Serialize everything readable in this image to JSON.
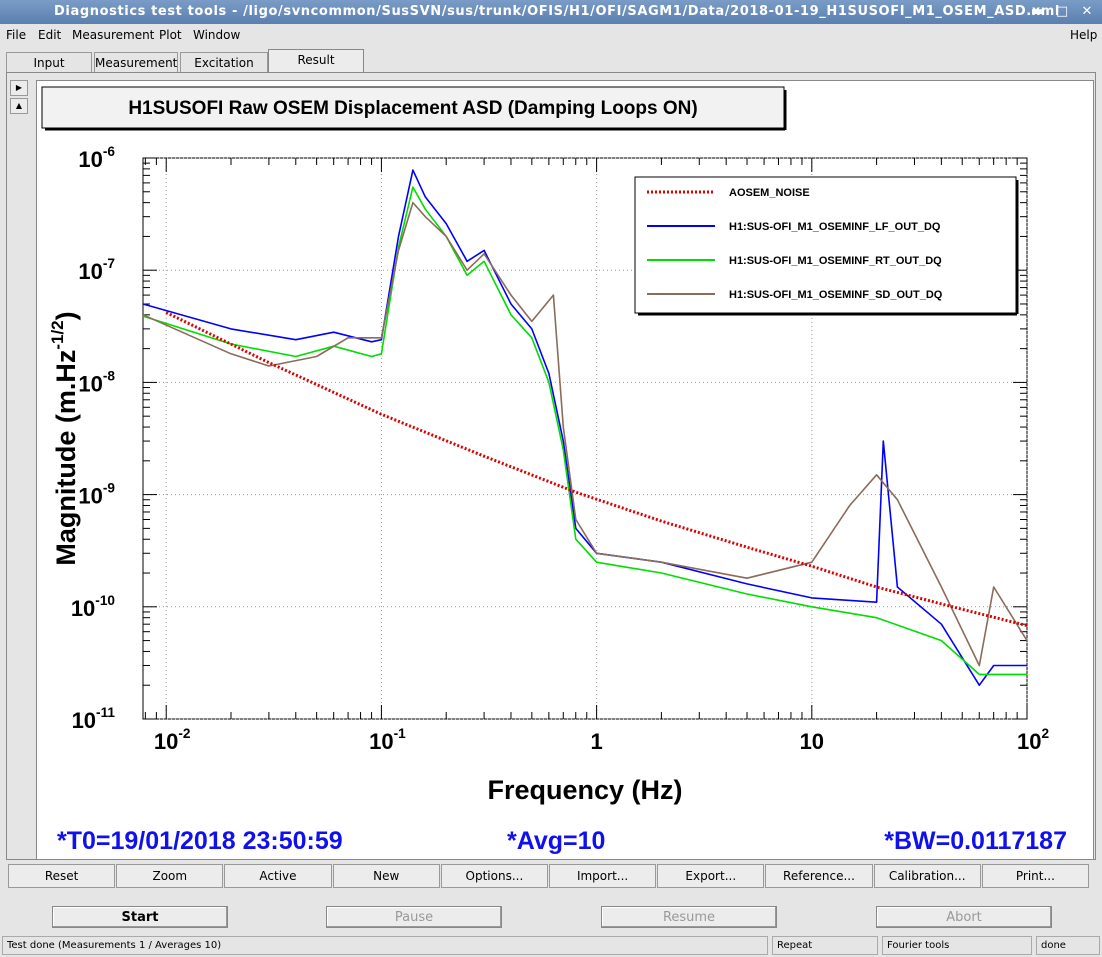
{
  "window": {
    "title": "Diagnostics test tools - /ligo/svncommon/SusSVN/sus/trunk/OFIS/H1/OFI/SAGM1/Data/2018-01-19_H1SUSOFI_M1_OSEM_ASD.xml"
  },
  "menu": {
    "file": "File",
    "edit": "Edit",
    "measurement": "Measurement",
    "plot": "Plot",
    "window": "Window",
    "help": "Help"
  },
  "tabs": [
    "Input",
    "Measurement",
    "Excitation",
    "Result"
  ],
  "chart_data": {
    "type": "line",
    "title": "H1SUSOFI Raw OSEM Displacement ASD (Damping Loops ON)",
    "xlabel": "Frequency (Hz)",
    "ylabel_main": "Magnitude (m.Hz",
    "ylabel_exp": "-1/2",
    "ylabel_close": ")",
    "x_scale": "log",
    "y_scale": "log",
    "xlim": [
      0.0078,
      100
    ],
    "ylim": [
      1e-11,
      1e-06
    ],
    "x_ticks": [
      {
        "base": "10",
        "exp": "-2",
        "value": 0.01
      },
      {
        "base": "10",
        "exp": "-1",
        "value": 0.1
      },
      {
        "base": "1",
        "exp": "",
        "value": 1
      },
      {
        "base": "10",
        "exp": "",
        "value": 10
      },
      {
        "base": "10",
        "exp": "2",
        "value": 100
      }
    ],
    "y_ticks": [
      {
        "base": "10",
        "exp": "-6",
        "value": 1e-06
      },
      {
        "base": "10",
        "exp": "-7",
        "value": 1e-07
      },
      {
        "base": "10",
        "exp": "-8",
        "value": 1e-08
      },
      {
        "base": "10",
        "exp": "-9",
        "value": 1e-09
      },
      {
        "base": "10",
        "exp": "-10",
        "value": 1e-10
      },
      {
        "base": "10",
        "exp": "-11",
        "value": 1e-11
      }
    ],
    "grid": true,
    "legend_position": "top-right",
    "series": [
      {
        "name": "AOSEM_NOISE",
        "color": "#dd0000",
        "style": "dotted",
        "points": [
          [
            0.01,
            4.2e-08
          ],
          [
            0.03,
            1.5e-08
          ],
          [
            0.1,
            5.2e-09
          ],
          [
            0.3,
            2.2e-09
          ],
          [
            0.8,
            1.05e-09
          ],
          [
            2,
            5.8e-10
          ],
          [
            5,
            3.4e-10
          ],
          [
            10,
            2.3e-10
          ],
          [
            20,
            1.5e-10
          ],
          [
            50,
            9.5e-11
          ],
          [
            100,
            6.8e-11
          ]
        ]
      },
      {
        "name": "H1:SUS-OFI_M1_OSEMINF_LF_OUT_DQ",
        "color": "#0000ff",
        "style": "solid",
        "points": [
          [
            0.0078,
            5e-08
          ],
          [
            0.02,
            3e-08
          ],
          [
            0.04,
            2.4e-08
          ],
          [
            0.06,
            2.8e-08
          ],
          [
            0.09,
            2.3e-08
          ],
          [
            0.1,
            2.4e-08
          ],
          [
            0.12,
            2e-07
          ],
          [
            0.14,
            7.8e-07
          ],
          [
            0.16,
            4.5e-07
          ],
          [
            0.2,
            2.6e-07
          ],
          [
            0.25,
            1.2e-07
          ],
          [
            0.3,
            1.5e-07
          ],
          [
            0.4,
            5e-08
          ],
          [
            0.5,
            3e-08
          ],
          [
            0.6,
            1.2e-08
          ],
          [
            0.7,
            3e-09
          ],
          [
            0.8,
            5e-10
          ],
          [
            1,
            3e-10
          ],
          [
            2,
            2.5e-10
          ],
          [
            5,
            1.6e-10
          ],
          [
            10,
            1.2e-10
          ],
          [
            20,
            1.1e-10
          ],
          [
            21.5,
            3e-09
          ],
          [
            25,
            1.5e-10
          ],
          [
            40,
            7e-11
          ],
          [
            60,
            2e-11
          ],
          [
            70,
            3e-11
          ],
          [
            100,
            3e-11
          ]
        ]
      },
      {
        "name": "H1:SUS-OFI_M1_OSEMINF_RT_OUT_DQ",
        "color": "#00dd00",
        "style": "solid",
        "points": [
          [
            0.0078,
            3.9e-08
          ],
          [
            0.02,
            2.2e-08
          ],
          [
            0.04,
            1.7e-08
          ],
          [
            0.06,
            2.1e-08
          ],
          [
            0.09,
            1.7e-08
          ],
          [
            0.1,
            1.8e-08
          ],
          [
            0.12,
            1.6e-07
          ],
          [
            0.14,
            5.5e-07
          ],
          [
            0.16,
            3.5e-07
          ],
          [
            0.2,
            2e-07
          ],
          [
            0.25,
            9e-08
          ],
          [
            0.3,
            1.2e-07
          ],
          [
            0.4,
            4e-08
          ],
          [
            0.5,
            2.5e-08
          ],
          [
            0.6,
            1e-08
          ],
          [
            0.7,
            2.5e-09
          ],
          [
            0.8,
            4e-10
          ],
          [
            1,
            2.5e-10
          ],
          [
            2,
            2e-10
          ],
          [
            5,
            1.3e-10
          ],
          [
            10,
            1e-10
          ],
          [
            20,
            8e-11
          ],
          [
            40,
            5e-11
          ],
          [
            60,
            2.5e-11
          ],
          [
            100,
            2.5e-11
          ]
        ]
      },
      {
        "name": "H1:SUS-OFI_M1_OSEMINF_SD_OUT_DQ",
        "color": "#8b6b5a",
        "style": "solid",
        "points": [
          [
            0.0078,
            4e-08
          ],
          [
            0.02,
            1.8e-08
          ],
          [
            0.03,
            1.4e-08
          ],
          [
            0.05,
            1.7e-08
          ],
          [
            0.07,
            2.5e-08
          ],
          [
            0.1,
            2.5e-08
          ],
          [
            0.12,
            1.5e-07
          ],
          [
            0.14,
            4e-07
          ],
          [
            0.16,
            3e-07
          ],
          [
            0.2,
            2e-07
          ],
          [
            0.25,
            1e-07
          ],
          [
            0.3,
            1.4e-07
          ],
          [
            0.4,
            6e-08
          ],
          [
            0.5,
            3.5e-08
          ],
          [
            0.63,
            6e-08
          ],
          [
            0.7,
            4e-09
          ],
          [
            0.8,
            6e-10
          ],
          [
            1,
            3e-10
          ],
          [
            2,
            2.5e-10
          ],
          [
            5,
            1.8e-10
          ],
          [
            10,
            2.5e-10
          ],
          [
            15,
            8e-10
          ],
          [
            20,
            1.5e-09
          ],
          [
            25,
            9e-10
          ],
          [
            40,
            1.5e-10
          ],
          [
            60,
            3e-11
          ],
          [
            70,
            1.5e-10
          ],
          [
            100,
            5e-11
          ]
        ]
      }
    ],
    "annotations": {
      "t0": "*T0=19/01/2018 23:50:59",
      "avg": "*Avg=10",
      "bw": "*BW=0.0117187"
    }
  },
  "toolbar": [
    "Reset",
    "Zoom",
    "Active",
    "New",
    "Options...",
    "Import...",
    "Export...",
    "Reference...",
    "Calibration...",
    "Print..."
  ],
  "controls": {
    "start": "Start",
    "pause": "Pause",
    "resume": "Resume",
    "abort": "Abort"
  },
  "status": {
    "message": "Test done (Measurements 1 / Averages 10)",
    "repeat": "Repeat",
    "tools": "Fourier tools",
    "state": "done"
  }
}
